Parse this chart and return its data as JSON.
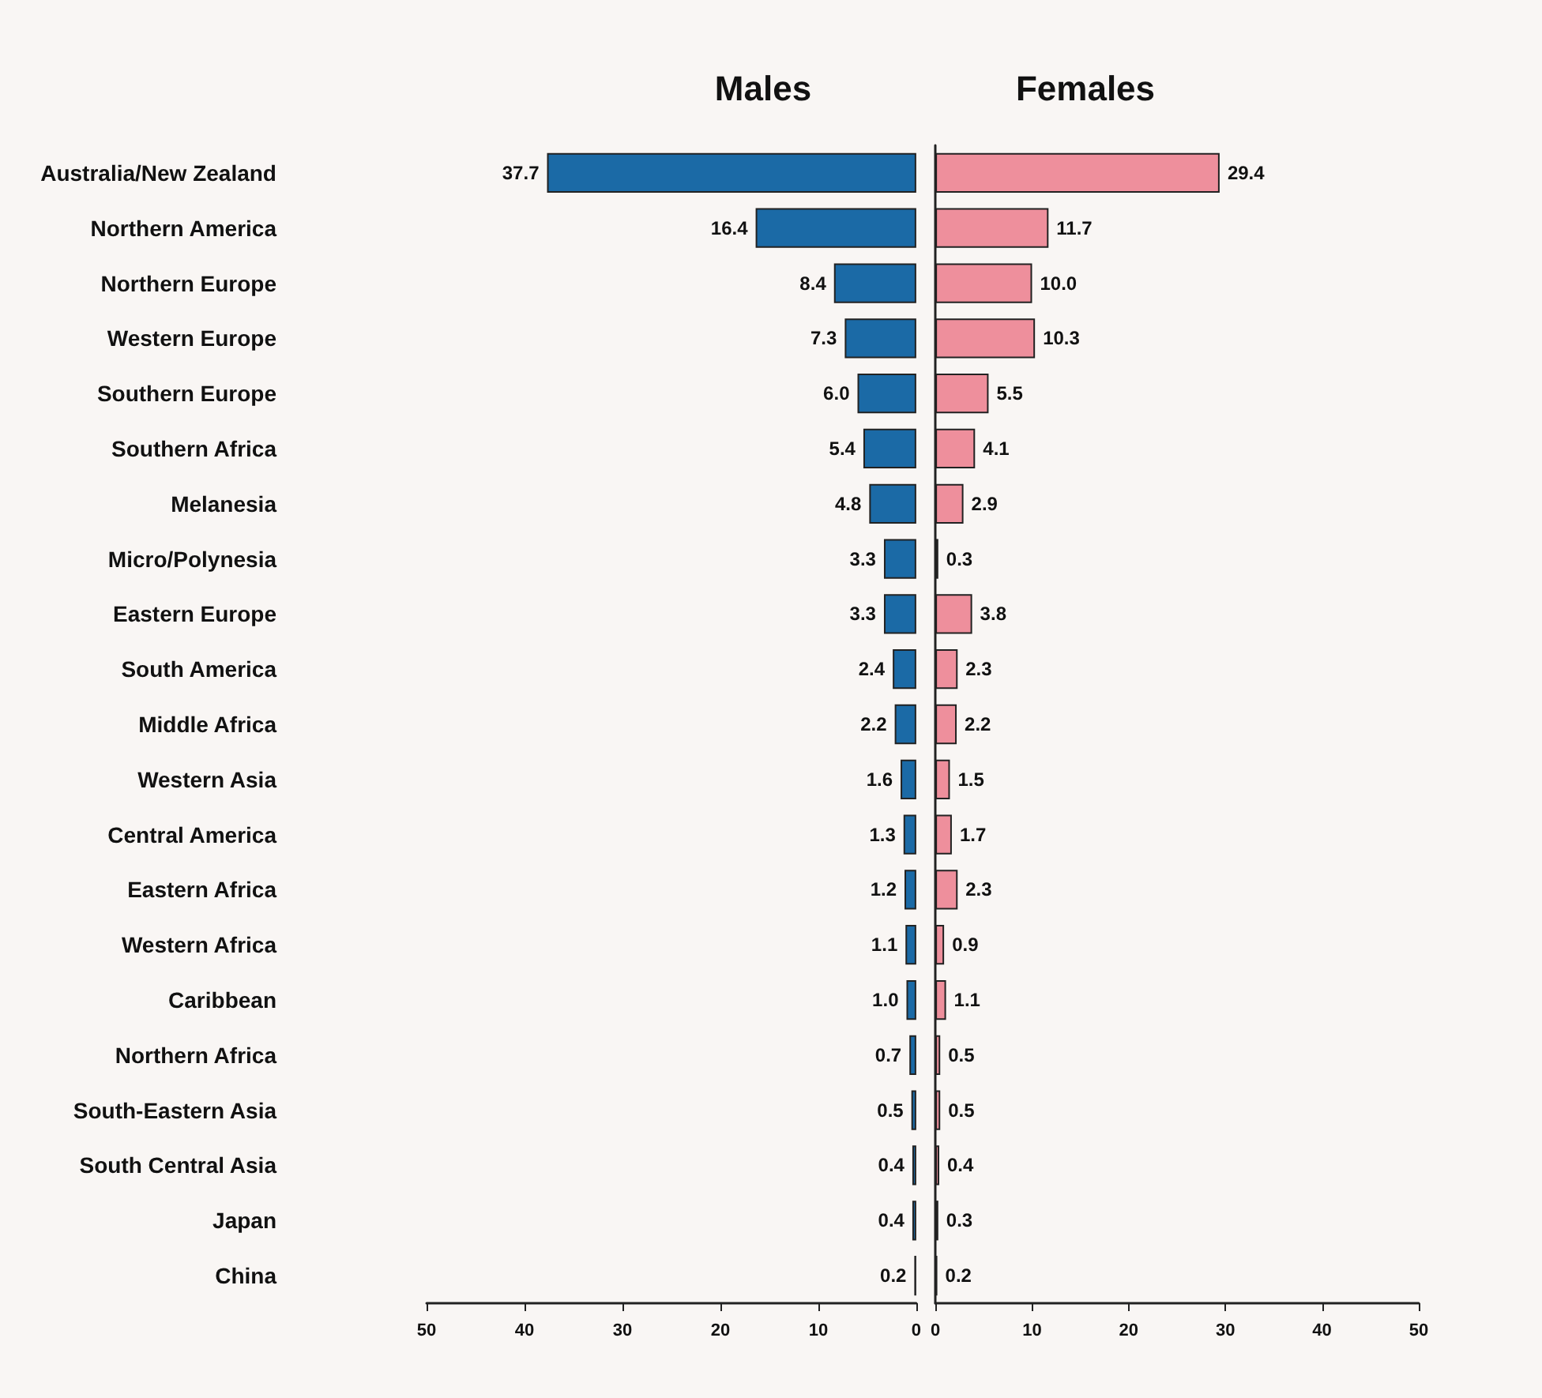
{
  "chart_data": [
    {
      "type": "bar",
      "orientation": "horizontal",
      "title": "Males",
      "categories": [
        "Australia/New Zealand",
        "Northern America",
        "Northern Europe",
        "Western Europe",
        "Southern Europe",
        "Southern Africa",
        "Melanesia",
        "Micro/Polynesia",
        "Eastern Europe",
        "South America",
        "Middle Africa",
        "Western Asia",
        "Central America",
        "Eastern Africa",
        "Western Africa",
        "Caribbean",
        "Northern Africa",
        "South-Eastern Asia",
        "South Central Asia",
        "Japan",
        "China"
      ],
      "series": [
        {
          "color": "#1b6aa6",
          "values": [
            37.7,
            16.4,
            8.4,
            7.3,
            6.0,
            5.4,
            4.8,
            3.3,
            3.3,
            2.4,
            2.2,
            1.6,
            1.3,
            1.2,
            1.1,
            1.0,
            0.7,
            0.5,
            0.4,
            0.4,
            0.2
          ],
          "value_labels": [
            "37.7",
            "16.4",
            "8.4",
            "7.3",
            "6.0",
            "5.4",
            "4.8",
            "3.3",
            "3.3",
            "2.4",
            "2.2",
            "1.6",
            "1.3",
            "1.2",
            "1.1",
            "1.0",
            "0.7",
            "0.5",
            "0.4",
            "0.4",
            "0.2"
          ]
        }
      ],
      "xlim": [
        50,
        0
      ],
      "xticks": [
        50,
        40,
        30,
        20,
        10,
        0
      ]
    },
    {
      "type": "bar",
      "orientation": "horizontal",
      "title": "Females",
      "categories": [
        null,
        null,
        null,
        null,
        null,
        null,
        null,
        null,
        null,
        null,
        null,
        null,
        null,
        null,
        null,
        null,
        null,
        null,
        null,
        null,
        null
      ],
      "series": [
        {
          "color": "#ee8f9c",
          "values": [
            29.4,
            11.7,
            10.0,
            10.3,
            5.5,
            4.1,
            2.9,
            0.3,
            3.8,
            2.3,
            2.2,
            1.5,
            1.7,
            2.3,
            0.9,
            1.1,
            0.5,
            0.5,
            0.4,
            0.3,
            0.2
          ],
          "value_labels": [
            "29.4",
            "11.7",
            "10.0",
            "10.3",
            "5.5",
            "4.1",
            "2.9",
            "0.3",
            "3.8",
            "2.3",
            "2.2",
            "1.5",
            "1.7",
            "2.3",
            "0.9",
            "1.1",
            "0.5",
            "0.5",
            "0.4",
            "0.3",
            "0.2"
          ]
        }
      ],
      "xlim": [
        0,
        50
      ],
      "xticks": [
        0,
        10,
        20,
        30,
        40,
        50
      ],
      "tick_labels": "x"
    }
  ]
}
